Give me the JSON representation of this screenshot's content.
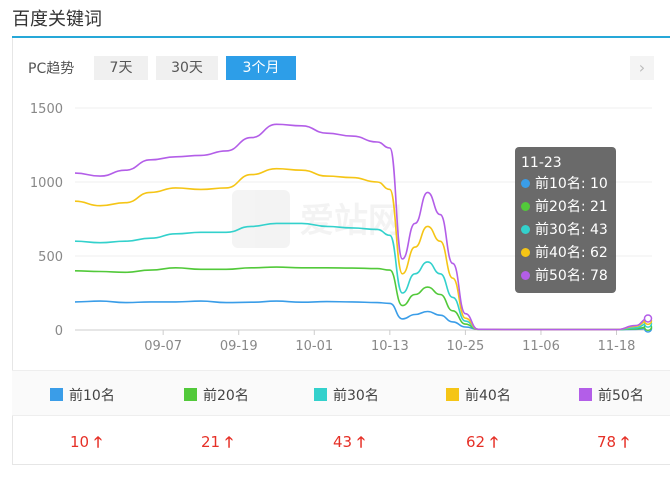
{
  "page": {
    "title": "百度关键词"
  },
  "controls": {
    "pc_label": "PC趋势",
    "ranges": [
      "7天",
      "30天",
      "3个月"
    ],
    "active_range": "3个月",
    "next_icon": "chevron-right-icon"
  },
  "colors": {
    "accent": "#2d9ee8",
    "top10": "#3a9de8",
    "top20": "#52c93a",
    "top30": "#33d1cc",
    "top40": "#f5c516",
    "top50": "#b35ee8",
    "up": "#e63027"
  },
  "chart_data": {
    "type": "line",
    "ylim": [
      0,
      1500
    ],
    "yticks": [
      "0",
      "500",
      "1000",
      "1500"
    ],
    "xticks": [
      "09-07",
      "09-19",
      "10-01",
      "10-13",
      "10-25",
      "11-06",
      "11-18"
    ],
    "x": [
      "08-24",
      "08-28",
      "09-01",
      "09-05",
      "09-09",
      "09-13",
      "09-17",
      "09-21",
      "09-25",
      "09-29",
      "10-03",
      "10-07",
      "10-11",
      "10-13",
      "10-15",
      "10-17",
      "10-19",
      "10-21",
      "10-23",
      "10-25",
      "10-27",
      "11-02",
      "11-10",
      "11-18",
      "11-21",
      "11-23"
    ],
    "series": [
      {
        "name": "前10名",
        "color": "#3a9de8",
        "values": [
          190,
          195,
          185,
          190,
          190,
          195,
          185,
          188,
          195,
          188,
          192,
          190,
          185,
          180,
          75,
          105,
          125,
          100,
          55,
          20,
          5,
          3,
          3,
          3,
          5,
          10
        ]
      },
      {
        "name": "前20名",
        "color": "#52c93a",
        "values": [
          400,
          395,
          390,
          405,
          420,
          410,
          410,
          420,
          425,
          420,
          420,
          418,
          415,
          405,
          165,
          240,
          290,
          240,
          130,
          40,
          5,
          3,
          3,
          3,
          8,
          21
        ]
      },
      {
        "name": "前30名",
        "color": "#33d1cc",
        "values": [
          600,
          590,
          600,
          620,
          650,
          660,
          660,
          700,
          720,
          720,
          700,
          690,
          680,
          640,
          250,
          380,
          460,
          380,
          220,
          60,
          5,
          3,
          3,
          3,
          15,
          43
        ]
      },
      {
        "name": "前40名",
        "color": "#f5c516",
        "values": [
          870,
          840,
          860,
          930,
          960,
          950,
          960,
          1050,
          1090,
          1080,
          1040,
          1030,
          1000,
          950,
          380,
          560,
          700,
          600,
          350,
          80,
          5,
          3,
          3,
          3,
          25,
          62
        ]
      },
      {
        "name": "前50名",
        "color": "#b35ee8",
        "values": [
          1060,
          1040,
          1080,
          1150,
          1170,
          1180,
          1210,
          1300,
          1390,
          1380,
          1330,
          1310,
          1270,
          1230,
          480,
          720,
          930,
          780,
          450,
          110,
          5,
          3,
          3,
          3,
          30,
          78
        ]
      }
    ],
    "tooltip": {
      "date": "11-23",
      "rows": [
        "前10名: 10",
        "前20名: 21",
        "前30名: 43",
        "前40名: 62",
        "前50名: 78"
      ]
    }
  },
  "legend": [
    {
      "label": "前10名",
      "value": "10"
    },
    {
      "label": "前20名",
      "value": "21"
    },
    {
      "label": "前30名",
      "value": "43"
    },
    {
      "label": "前40名",
      "value": "62"
    },
    {
      "label": "前50名",
      "value": "78"
    }
  ],
  "watermark": "爱站网"
}
